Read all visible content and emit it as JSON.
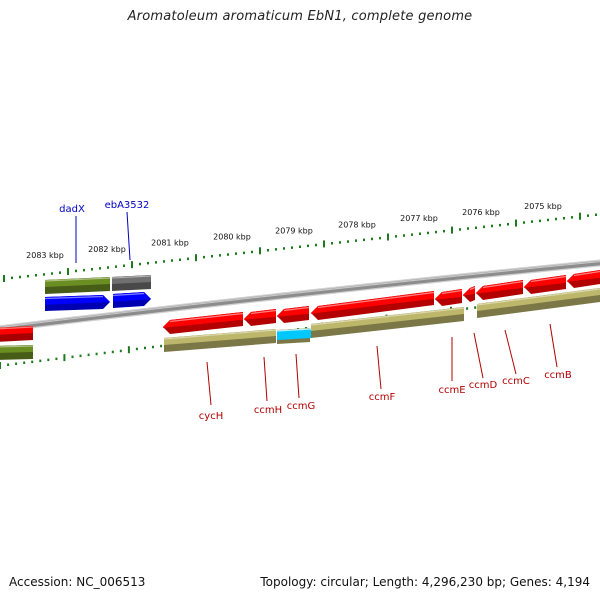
{
  "title": "Aromatoleum aromaticum EbN1, complete genome",
  "footer": {
    "accession": "Accession: NC_006513",
    "topology": "Topology: circular; Length: 4,296,230 bp; Genes: 4,194"
  },
  "colors": {
    "cds": "#ff0000",
    "cds_alt": "#0000ff",
    "gene": "#6b8e23",
    "gene_alt": "#707070",
    "gene_khaki": "#bdb76b",
    "misc": "#00c8ff",
    "backbone": "#8c8c8c",
    "tick": "#1e7a1e",
    "label_red": "#b00000",
    "label_blue": "#0000c0"
  },
  "scale_labels": [
    "2083 kbp",
    "2082 kbp",
    "2081 kbp",
    "2080 kbp",
    "2079 kbp",
    "2078 kbp",
    "2077 kbp",
    "2076 kbp",
    "2075 kbp"
  ],
  "gene_labels_top": [
    "dadX",
    "ebA3532"
  ],
  "gene_labels_bottom": [
    "cycH",
    "ccmH",
    "ccmG",
    "ccmF",
    "ccmE",
    "ccmD",
    "ccmC",
    "ccmB"
  ]
}
